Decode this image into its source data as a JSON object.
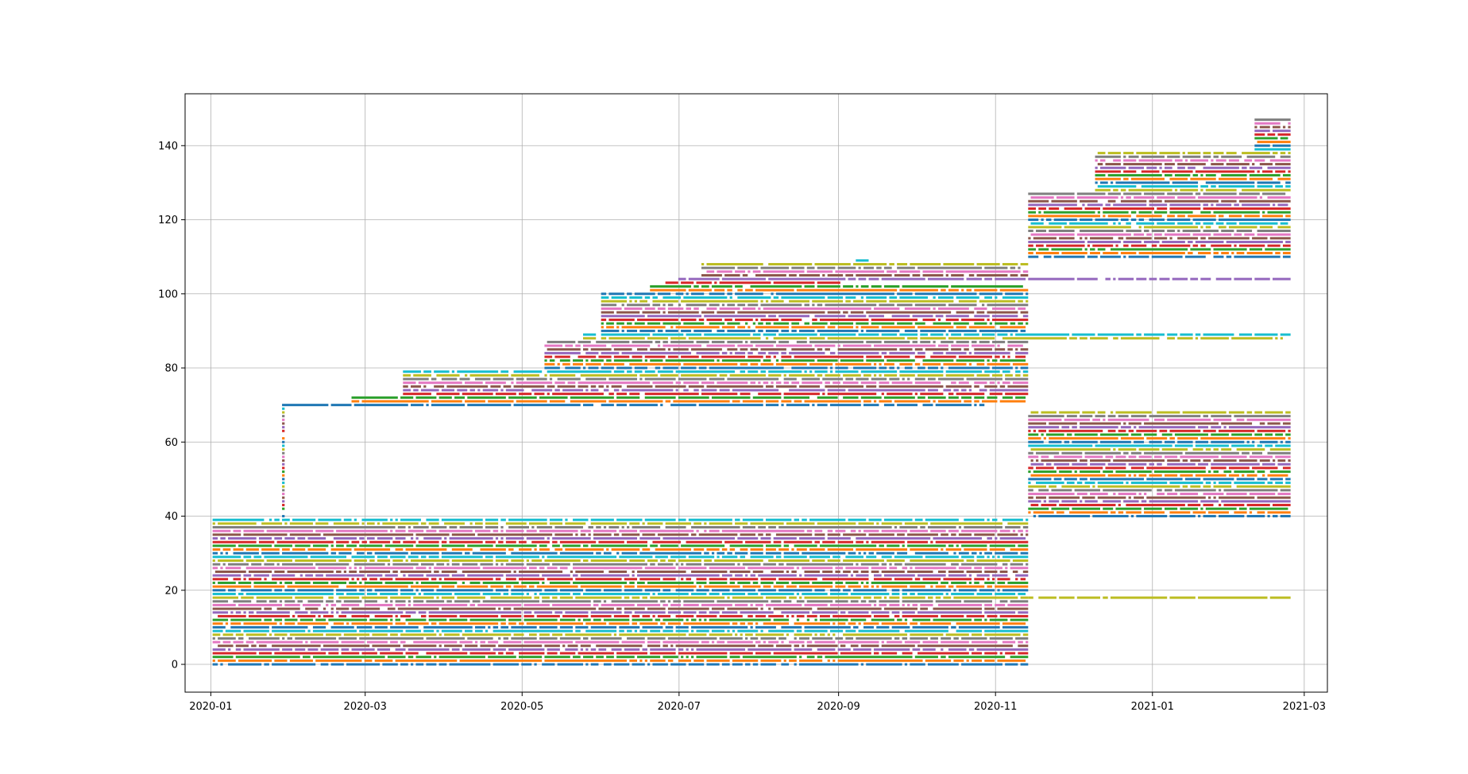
{
  "chart_data": {
    "type": "scatter",
    "title": "",
    "xlabel": "",
    "ylabel": "",
    "x_axis": {
      "type": "date",
      "range": [
        "2019-12-22",
        "2021-03-10"
      ],
      "tick_labels": [
        "2020-01",
        "2020-03",
        "2020-05",
        "2020-07",
        "2020-09",
        "2020-11",
        "2021-01",
        "2021-03"
      ],
      "tick_dates": [
        "2020-01-01",
        "2020-03-01",
        "2020-05-01",
        "2020-07-01",
        "2020-09-01",
        "2020-11-01",
        "2021-01-01",
        "2021-03-01"
      ]
    },
    "y_axis": {
      "range": [
        -7.5,
        154
      ],
      "tick_labels": [
        "0",
        "20",
        "40",
        "60",
        "80",
        "100",
        "120",
        "140"
      ],
      "tick_values": [
        0,
        20,
        40,
        60,
        80,
        100,
        120,
        140
      ]
    },
    "grid": true,
    "legend": "none",
    "palette": [
      "#1f77b4",
      "#ff7f0e",
      "#2ca02c",
      "#d62728",
      "#9467bd",
      "#8c564b",
      "#e377c2",
      "#7f7f7f",
      "#bcbd22",
      "#17becf"
    ],
    "series": [
      {
        "ids": [
          0,
          39
        ],
        "start": "2020-01-02",
        "end": "2020-11-13"
      },
      {
        "ids": [
          40,
          69
        ],
        "start": "2020-01-29",
        "end": "2020-01-29"
      },
      {
        "ids": [
          70,
          70
        ],
        "start": "2020-01-29",
        "end": "2020-10-28"
      },
      {
        "ids": [
          71,
          72
        ],
        "start": "2020-02-25",
        "end": "2020-11-12"
      },
      {
        "ids": [
          73,
          79
        ],
        "start": "2020-03-16",
        "end": "2020-11-13"
      },
      {
        "ids": [
          80,
          87
        ],
        "start": "2020-05-10",
        "end": "2020-11-13"
      },
      {
        "ids": [
          88,
          88
        ],
        "start": "2020-05-25",
        "end": "2021-02-20"
      },
      {
        "ids": [
          89,
          89
        ],
        "start": "2020-05-25",
        "end": "2021-02-23"
      },
      {
        "ids": [
          90,
          100
        ],
        "start": "2020-06-01",
        "end": "2020-11-13"
      },
      {
        "ids": [
          101,
          102
        ],
        "start": "2020-06-20",
        "end": "2020-11-13"
      },
      {
        "ids": [
          103,
          103
        ],
        "start": "2020-06-25",
        "end": "2020-09-01"
      },
      {
        "ids": [
          104,
          104
        ],
        "start": "2020-07-01",
        "end": "2021-02-23"
      },
      {
        "ids": [
          105,
          108
        ],
        "start": "2020-07-10",
        "end": "2020-11-13"
      },
      {
        "ids": [
          109,
          109
        ],
        "start": "2020-09-08",
        "end": "2020-09-12"
      },
      {
        "ids": [
          110,
          127
        ],
        "start": "2020-11-14",
        "end": "2021-02-23"
      },
      {
        "ids": [
          128,
          138
        ],
        "start": "2020-12-10",
        "end": "2021-02-23"
      },
      {
        "ids": [
          139,
          147
        ],
        "start": "2021-02-10",
        "end": "2021-02-23"
      },
      {
        "ids": [
          40,
          68
        ],
        "start": "2020-11-14",
        "end": "2021-02-23"
      },
      {
        "ids": [
          18,
          18
        ],
        "start": "2020-11-14",
        "end": "2021-02-23"
      }
    ]
  }
}
